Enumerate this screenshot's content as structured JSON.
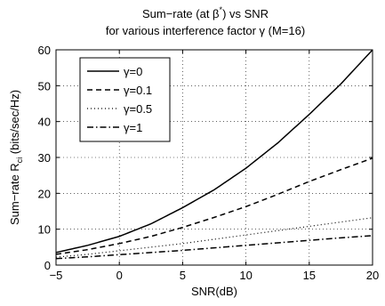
{
  "chart_data": {
    "type": "line",
    "title": "Sum−rate (at β*) vs SNR",
    "subtitle": "for various interference factor γ (M=16)",
    "title_parts": {
      "pre": "Sum−rate (at β",
      "sup": "*",
      "post": ") vs SNR"
    },
    "xlabel": "SNR(dB)",
    "ylabel": "Sum−rate R ci (bits/sec/Hz)",
    "ylabel_parts": {
      "pre": "Sum−rate R",
      "sub": "ci",
      "post": " (bits/sec/Hz)"
    },
    "xlim": [
      -5,
      20
    ],
    "ylim": [
      0,
      60
    ],
    "xticks": [
      "−5",
      "0",
      "5",
      "10",
      "15",
      "20"
    ],
    "yticks": [
      "0",
      "10",
      "20",
      "30",
      "40",
      "50",
      "60"
    ],
    "grid": true,
    "legend_position": "top-left",
    "x": [
      -5,
      -2.5,
      0,
      2.5,
      5,
      7.5,
      10,
      12.5,
      15,
      17.5,
      20
    ],
    "series": [
      {
        "name": "γ=0",
        "style": "solid",
        "values": [
          3.5,
          5.5,
          8.0,
          11.5,
          16.0,
          21.0,
          27.0,
          34.0,
          42.0,
          50.5,
          60.0
        ]
      },
      {
        "name": "γ=0.1",
        "style": "dashed",
        "values": [
          3.0,
          4.3,
          6.0,
          8.0,
          10.5,
          13.3,
          16.3,
          19.7,
          23.3,
          26.6,
          29.8
        ]
      },
      {
        "name": "γ=0.5",
        "style": "dotted",
        "values": [
          2.2,
          3.0,
          4.0,
          5.0,
          6.0,
          7.2,
          8.4,
          9.6,
          10.8,
          12.0,
          13.2
        ]
      },
      {
        "name": "γ=1",
        "style": "dashdot",
        "values": [
          1.8,
          2.3,
          2.9,
          3.5,
          4.1,
          4.8,
          5.5,
          6.2,
          6.9,
          7.6,
          8.2
        ]
      }
    ]
  }
}
